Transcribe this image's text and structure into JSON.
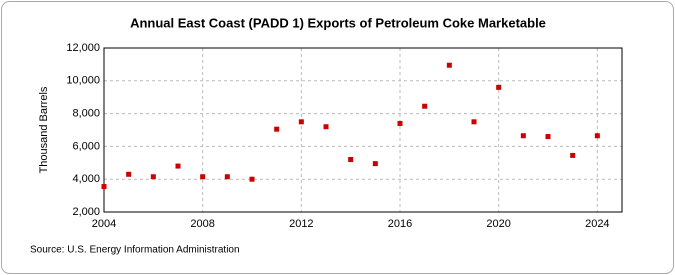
{
  "chart_data": {
    "type": "scatter",
    "title": "Annual East Coast (PADD 1) Exports of Petroleum Coke Marketable",
    "y_label": "Thousand Barrels",
    "source": "Source: U.S. Energy Information Administration",
    "x": [
      2004,
      2005,
      2006,
      2007,
      2008,
      2009,
      2010,
      2011,
      2012,
      2013,
      2014,
      2015,
      2016,
      2017,
      2018,
      2019,
      2020,
      2021,
      2022,
      2023,
      2024
    ],
    "series": [
      {
        "color": "#cc0000",
        "values": [
          3550,
          4300,
          4150,
          4800,
          4150,
          4150,
          4000,
          7050,
          7500,
          7200,
          5200,
          4950,
          7400,
          8450,
          10950,
          7500,
          9600,
          6650,
          6600,
          5450,
          6650
        ]
      }
    ],
    "xlim": [
      2004,
      2025
    ],
    "xticks": [
      2004,
      2008,
      2012,
      2016,
      2020,
      2024
    ],
    "ylim": [
      2000,
      12000
    ],
    "yticks": [
      {
        "value": 2000,
        "label": "2,000"
      },
      {
        "value": 4000,
        "label": "4,000"
      },
      {
        "value": 6000,
        "label": "6,000"
      },
      {
        "value": 8000,
        "label": "8,000"
      },
      {
        "value": 10000,
        "label": "10,000"
      },
      {
        "value": 12000,
        "label": "12,000"
      }
    ],
    "grid": true
  }
}
